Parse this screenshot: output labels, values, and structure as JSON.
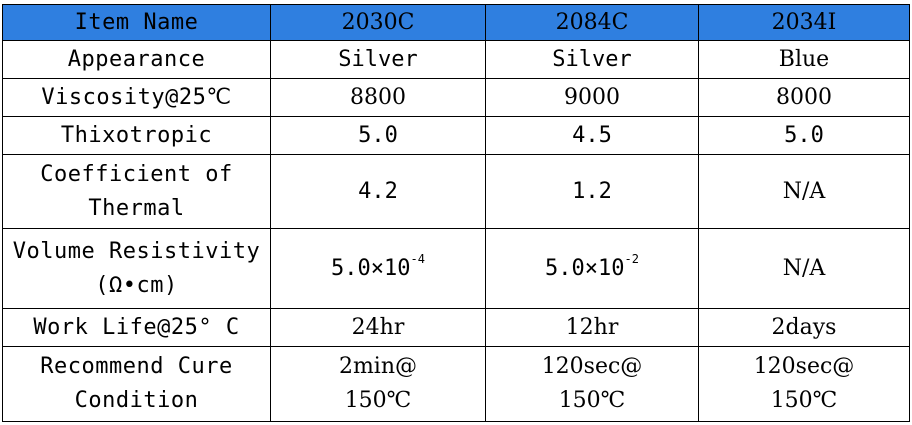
{
  "table": {
    "headers": [
      "Item Name",
      "2030C",
      "2084C",
      "2034I"
    ],
    "rows": [
      {
        "label": [
          "Appearance"
        ],
        "values": [
          [
            "Silver"
          ],
          [
            "Silver"
          ],
          [
            "Blue"
          ]
        ]
      },
      {
        "label": [
          "Viscosity@25℃"
        ],
        "values": [
          [
            "8800"
          ],
          [
            "9000"
          ],
          [
            "8000"
          ]
        ]
      },
      {
        "label": [
          "Thixotropic"
        ],
        "values": [
          [
            "5.0"
          ],
          [
            "4.5"
          ],
          [
            "5.0"
          ]
        ]
      },
      {
        "label": [
          "Coefficient of",
          "Thermal"
        ],
        "values": [
          [
            "4.2"
          ],
          [
            "1.2"
          ],
          [
            "N/A"
          ]
        ]
      },
      {
        "label": [
          "Volume Resistivity",
          "(Ω•cm)"
        ],
        "values": [
          {
            "base": "5.0×10",
            "exp": "-4"
          },
          {
            "base": "5.0×10",
            "exp": "-2"
          },
          [
            "N/A"
          ]
        ]
      },
      {
        "label": [
          "Work Life@25° C"
        ],
        "values": [
          [
            "24hr"
          ],
          [
            "12hr"
          ],
          [
            "2days"
          ]
        ]
      },
      {
        "label": [
          "Recommend Cure",
          "Condition"
        ],
        "values": [
          [
            "2min@",
            "150℃"
          ],
          [
            "120sec@",
            "150℃"
          ],
          [
            "120sec@",
            "150℃"
          ]
        ]
      }
    ]
  },
  "colors": {
    "header_background": "#2f7fe0",
    "border": "#000000"
  }
}
